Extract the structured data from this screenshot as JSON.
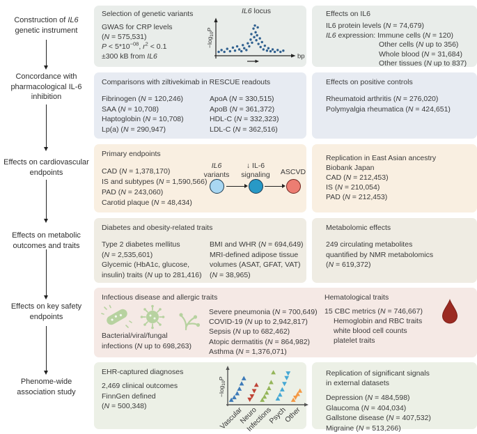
{
  "colors": {
    "text": "#3a3a3a",
    "row1_bg": "#e9edea",
    "row2_bg": "#e7ebf2",
    "row3_bg": "#f9efe1",
    "row4_bg": "#efece3",
    "row5_bg": "#f5e9e5",
    "row6_bg": "#ecf0e6",
    "scatter_dot": "#30608f",
    "node1_fill": "#a9d7f2",
    "node2_fill": "#2899c6",
    "node3_fill": "#ec7d72",
    "node12_stroke": "#1b3a50",
    "node3_stroke": "#6b241e",
    "infection_icon": "#b7d2a0",
    "blood_drop": "#9b2b23"
  },
  "stages": [
    {
      "label": "Construction of <i>IL6</i><br>genetic instrument"
    },
    {
      "label": "Concordance with<br>pharmacological IL-6<br>inhibition"
    },
    {
      "label": "Effects on cardiovascular<br>endpoints"
    },
    {
      "label": "Effects on metabolic<br>outcomes and traits"
    },
    {
      "label": "Effects on key safety<br>endpoints"
    },
    {
      "label": "Phenome-wide<br>association study"
    }
  ],
  "panels": {
    "row1_left": {
      "header": "Selection of genetic variants",
      "lines": [
        "GWAS for CRP levels",
        "(<i>N</i> = 575,531)",
        "<i>P</i> < 5*10<sup>−08</sup>, <i>r</i><sup>2</sup> < 0.1",
        "±300 kB from <i>IL6</i>"
      ]
    },
    "row1_right": {
      "header": "Effects on IL6",
      "lines": [
        "IL6 protein levels (<i>N</i> = 74,679)",
        "<i>IL6</i> expression: Immune cells (<i>N</i> = 120)",
        {
          "text": "Other cells (<i>N</i> up to 356)",
          "indent": 76
        },
        {
          "text": "Whole blood (<i>N</i> = 31,684)",
          "indent": 76
        },
        {
          "text": "Other tissues (<i>N</i> up to 837)",
          "indent": 76
        }
      ]
    },
    "row2_left": {
      "header": "Comparisons with ziltivekimab in RESCUE readouts",
      "col1": [
        "Fibrinogen (<i>N</i> = 120,246)",
        "SAA (<i>N</i> = 10,708)",
        "Haptoglobin (<i>N</i> = 10,708)",
        "Lp(a) (<i>N</i> = 290,947)"
      ],
      "col2": [
        "ApoA (<i>N</i> = 330,515)",
        "ApoB (<i>N</i> = 361,372)",
        "HDL-C (<i>N</i> = 332,323)",
        "LDL-C (<i>N</i> = 362,516)"
      ]
    },
    "row2_right": {
      "header": "Effects on positive controls",
      "lines": [
        "Rheumatoid arthritis (<i>N</i> = 276,020)",
        "Polymyalgia rheumatica (<i>N</i> = 424,651)"
      ]
    },
    "row3_left": {
      "header": "Primary endpoints",
      "col1": [
        "CAD (<i>N</i> = 1,378,170)",
        "IS and subtypes (<i>N</i> = 1,590,566)",
        "PAD (<i>N</i> = 243,060)",
        "Carotid plaque (<i>N</i> = 48,434)"
      ],
      "nodes": [
        {
          "label": "<i>IL6</i><br>variants"
        },
        {
          "label": "↓ IL-6<br>signaling"
        },
        {
          "label": "ASCVD"
        }
      ]
    },
    "row3_right": {
      "lines": [
        "Replication in East Asian ancestry",
        "Biobank Japan",
        "CAD (<i>N</i> = 212,453)",
        "IS (<i>N</i> = 210,054)",
        "PAD (<i>N</i> = 212,453)"
      ]
    },
    "row4_left": {
      "header": "Diabetes and obesity-related traits",
      "col1": [
        "Type 2 diabetes mellitus",
        "(<i>N</i> = 2,535,601)",
        "Glycemic (HbA1c, glucose,",
        "insulin) traits (<i>N</i> up to 281,416)"
      ],
      "col2": [
        "BMI and WHR (<i>N</i> = 694,649)",
        "MRI-defined adipose tissue",
        "volumes (ASAT, GFAT, VAT)",
        "(<i>N</i> = 38,965)"
      ]
    },
    "row4_right": {
      "header": "Metabolomic effects",
      "lines": [
        "249 circulating metabolites",
        "quantified by NMR metabolomics",
        "(<i>N</i> = 619,372)"
      ]
    },
    "row5": {
      "header": "Infectious disease and allergic traits",
      "icon_caption": [
        "Bacterial/viral/fungal",
        "infections (<i>N</i> up to 698,263)"
      ],
      "mid": [
        "Severe pneumonia (<i>N</i> = 700,649)",
        "COVID-19 (<i>N</i> up to 2,942,817)",
        "Sepsis (<i>N</i> up to 682,462)",
        "Atopic dermatitis (<i>N</i> = 864,982)",
        "Asthma (<i>N</i> = 1,376,071)"
      ],
      "right_header": "Hematological traits",
      "right_lines": [
        "15 CBC metrics (<i>N</i> = 746,667)",
        {
          "text": "Hemoglobin and RBC traits",
          "indent": 13
        },
        {
          "text": "white blood cell counts",
          "indent": 13
        },
        {
          "text": "platelet traits",
          "indent": 13
        }
      ]
    },
    "row6_left": {
      "header": "EHR-captured diagnoses",
      "lines": [
        "2,469 clinical outcomes",
        "FinnGen defined",
        "(<i>N</i> = 500,348)"
      ]
    },
    "row6_right": {
      "header": "Replication of significant signals<br>in external datasets",
      "lines": [
        "Depression (<i>N</i> = 484,598)",
        "Glaucoma (<i>N</i> = 404,034)",
        "Gallstone disease (<i>N</i> = 407,532)",
        "Migraine (<i>N</i> = 513,266)"
      ]
    }
  },
  "chart_data": [
    {
      "id": "il6_locus_scatter",
      "type": "scatter",
      "title": "IL6 locus",
      "title_html": "<i>IL6</i> locus",
      "xlabel": "bp",
      "ylabel": "-log10 P",
      "ylabel_parts": [
        "−log",
        "10",
        "P"
      ],
      "axis_ticks": "none",
      "points": [
        [
          2,
          8
        ],
        [
          6,
          14
        ],
        [
          10,
          8
        ],
        [
          14,
          18
        ],
        [
          18,
          10
        ],
        [
          22,
          22
        ],
        [
          25,
          12
        ],
        [
          28,
          26
        ],
        [
          31,
          16
        ],
        [
          34,
          10
        ],
        [
          36,
          30
        ],
        [
          38,
          20
        ],
        [
          41,
          14
        ],
        [
          43,
          36
        ],
        [
          45,
          26
        ],
        [
          47,
          48
        ],
        [
          48,
          66
        ],
        [
          49,
          38
        ],
        [
          51,
          84
        ],
        [
          52,
          56
        ],
        [
          53,
          94
        ],
        [
          54,
          72
        ],
        [
          55,
          46
        ],
        [
          56,
          62
        ],
        [
          57,
          88
        ],
        [
          58,
          34
        ],
        [
          60,
          52
        ],
        [
          61,
          24
        ],
        [
          63,
          40
        ],
        [
          65,
          16
        ],
        [
          67,
          28
        ],
        [
          70,
          12
        ],
        [
          72,
          20
        ],
        [
          75,
          10
        ],
        [
          78,
          16
        ],
        [
          81,
          8
        ],
        [
          85,
          14
        ],
        [
          89,
          8
        ],
        [
          93,
          12
        ]
      ]
    },
    {
      "id": "phewas_manhattan",
      "type": "scatter",
      "marker": "triangle",
      "ylabel": "-log10 P",
      "ylabel_parts": [
        "−log",
        "10",
        "P"
      ],
      "categories": [
        "Vascular",
        "Neuro",
        "Infections",
        "Psych",
        "Other"
      ],
      "groups": [
        {
          "label": "Vascular",
          "color": "#3d7ab8",
          "tick": 13,
          "points": [
            [
              3,
              10,
              1
            ],
            [
              7,
              18,
              1
            ],
            [
              11,
              30,
              1
            ],
            [
              14,
              44,
              1
            ],
            [
              17,
              60,
              1
            ],
            [
              20,
              76,
              1
            ]
          ]
        },
        {
          "label": "Neuro",
          "color": "#bf4336",
          "tick": 32,
          "points": [
            [
              28,
              12,
              -1
            ],
            [
              31,
              22,
              -1
            ],
            [
              34,
              38,
              -1
            ],
            [
              37,
              56,
              1
            ]
          ]
        },
        {
          "label": "Infections",
          "color": "#94b559",
          "tick": 52,
          "points": [
            [
              45,
              10,
              1
            ],
            [
              48,
              20,
              1
            ],
            [
              51,
              32,
              1
            ],
            [
              54,
              46,
              1
            ],
            [
              57,
              64,
              1
            ],
            [
              60,
              94,
              1
            ]
          ]
        },
        {
          "label": "Psych",
          "color": "#45a8d4",
          "tick": 72,
          "points": [
            [
              66,
              14,
              1
            ],
            [
              69,
              26,
              1
            ],
            [
              72,
              42,
              1
            ],
            [
              75,
              60,
              -1
            ],
            [
              78,
              78,
              -1
            ],
            [
              80,
              92,
              -1
            ]
          ]
        },
        {
          "label": "Other",
          "color": "#f49844",
          "tick": 91,
          "points": [
            [
              87,
              10,
              1
            ],
            [
              90,
              18,
              -1
            ],
            [
              93,
              28,
              1
            ],
            [
              96,
              38,
              1
            ]
          ]
        }
      ]
    }
  ]
}
